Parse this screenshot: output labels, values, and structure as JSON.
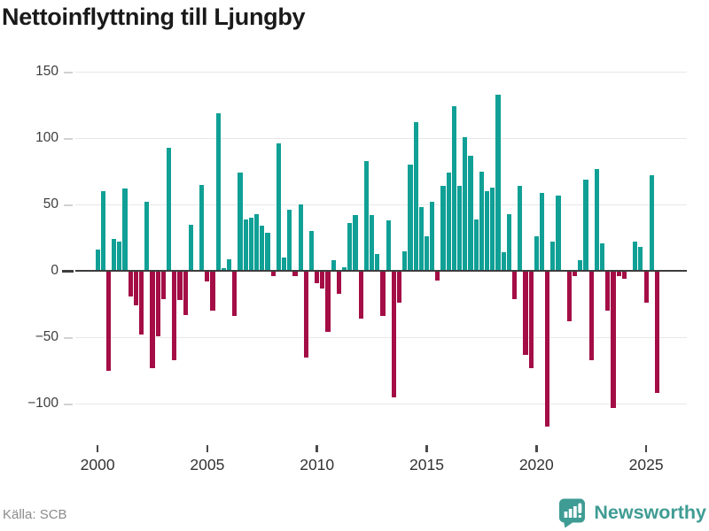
{
  "title": "Nettoinflyttning till Ljungby",
  "source": "Källa: SCB",
  "branding": {
    "name": "Newsworthy"
  },
  "colors": {
    "positive": "#10a096",
    "negative": "#a40d45",
    "brand_teal": "#3f9c94",
    "zero_line": "#3d3d3d",
    "gridline": "#e7e7e7",
    "title_text": "#1a1a1a",
    "axis_text": "#3d3d3d",
    "source_text": "#8b8b8b"
  },
  "y_axis": {
    "tick_values": [
      150,
      100,
      50,
      0,
      -50,
      -100
    ],
    "tick_labels": [
      "150",
      "100",
      "50",
      "0",
      "−50",
      "−100"
    ]
  },
  "x_axis": {
    "tick_labels": [
      "2000",
      "2005",
      "2010",
      "2015",
      "2020",
      "2025"
    ],
    "ticks_every_n_bars": 20
  },
  "chart_data": {
    "type": "bar",
    "title": "Nettoinflyttning till Ljungby",
    "frequency": "quarterly",
    "start": "2000Q1",
    "end": "2025Q3",
    "ylim": [
      -125,
      155
    ],
    "grid": true,
    "legend": "none",
    "positive_color": "#10a096",
    "negative_color": "#a40d45",
    "xticks": [
      "2000",
      "2005",
      "2010",
      "2015",
      "2020",
      "2025"
    ],
    "values": [
      16,
      60,
      -75,
      24,
      22,
      62,
      -19,
      -26,
      -48,
      52,
      -73,
      -49,
      -21,
      93,
      -67,
      -22,
      -33,
      35,
      0,
      65,
      -8,
      -30,
      119,
      2,
      9,
      -34,
      74,
      39,
      40,
      43,
      34,
      29,
      -4,
      96,
      10,
      46,
      -4,
      50,
      -65,
      30,
      -9,
      -13,
      -46,
      8,
      -17,
      3,
      36,
      42,
      -36,
      83,
      42,
      13,
      -34,
      38,
      -95,
      -24,
      15,
      80,
      112,
      48,
      26,
      52,
      -7,
      64,
      74,
      124,
      64,
      101,
      87,
      39,
      75,
      60,
      63,
      133,
      14,
      43,
      -21,
      64,
      -63,
      -73,
      26,
      59,
      -117,
      22,
      57,
      0,
      -38,
      -4,
      8,
      69,
      -67,
      77,
      21,
      -30,
      -103,
      -4,
      -6,
      0,
      22,
      18,
      -24,
      72,
      -92
    ]
  }
}
